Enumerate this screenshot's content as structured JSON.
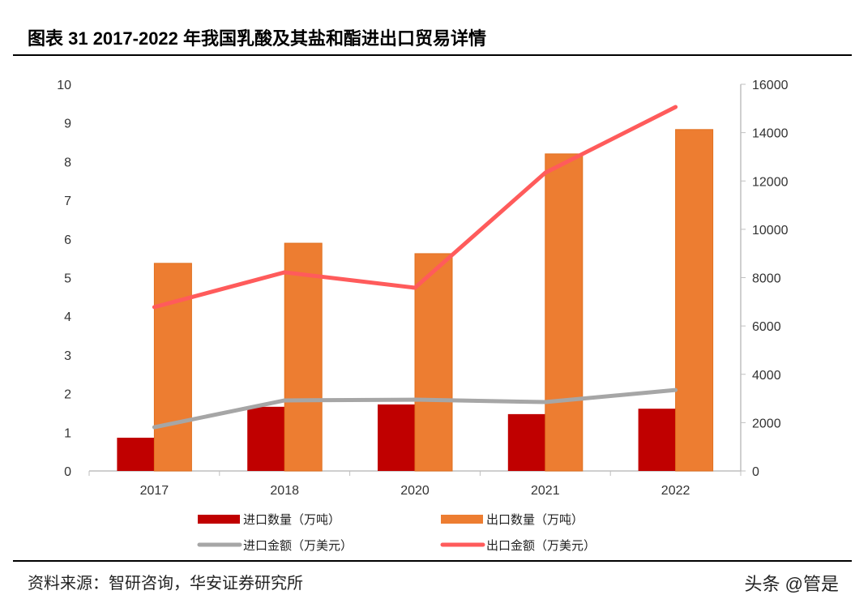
{
  "title": "图表 31 2017-2022 年我国乳酸及其盐和酯进出口贸易详情",
  "source": "资料来源：智研咨询，华安证券研究所",
  "watermark": "头条 @管是",
  "chart_data": {
    "type": "bar+line",
    "categories": [
      "2017",
      "2018",
      "2020",
      "2021",
      "2022"
    ],
    "y_left": {
      "range": [
        0,
        10
      ],
      "ticks": [
        "0",
        "1",
        "2",
        "3",
        "4",
        "5",
        "6",
        "7",
        "8",
        "9",
        "10"
      ]
    },
    "y_right": {
      "range": [
        0,
        16000
      ],
      "ticks": [
        "0",
        "2000",
        "4000",
        "6000",
        "8000",
        "10000",
        "12000",
        "14000",
        "16000"
      ]
    },
    "grid": false,
    "legend_position": "bottom",
    "series": [
      {
        "name": "进口数量（万吨）",
        "type": "bar",
        "axis": "left",
        "color": "#C00000",
        "values": [
          0.86,
          1.66,
          1.72,
          1.47,
          1.61
        ]
      },
      {
        "name": "出口数量（万吨）",
        "type": "bar",
        "axis": "left",
        "color": "#ED7D31",
        "values": [
          5.37,
          5.89,
          5.62,
          8.2,
          8.83
        ]
      },
      {
        "name": "进口金额（万美元）",
        "type": "line",
        "axis": "right",
        "color": "#A6A6A6",
        "values": [
          1810,
          2920,
          2950,
          2850,
          3350
        ]
      },
      {
        "name": "出口金额（万美元）",
        "type": "line",
        "axis": "right",
        "color": "#FF5B5B",
        "values": [
          6780,
          8220,
          7580,
          12340,
          15060
        ]
      }
    ]
  }
}
